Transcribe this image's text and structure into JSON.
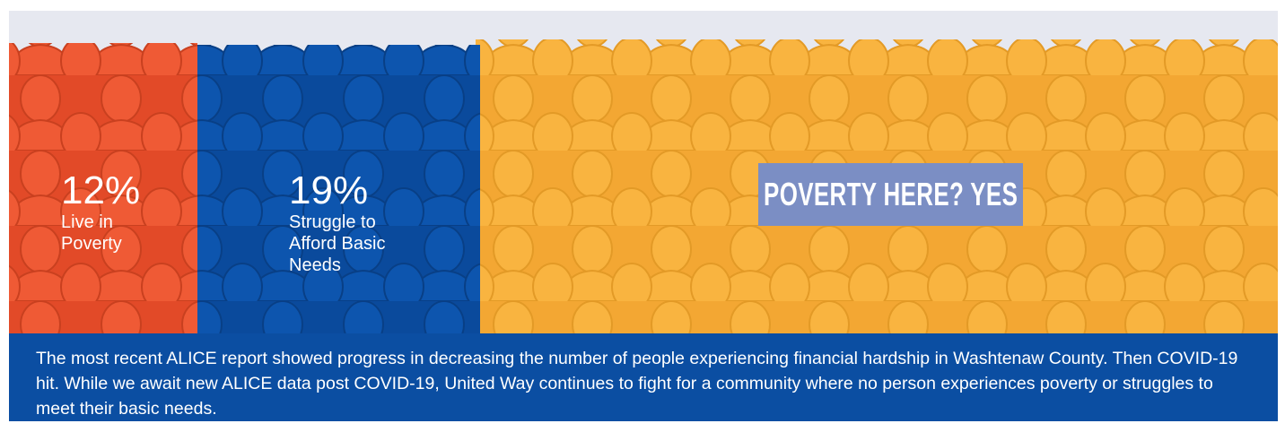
{
  "stats": [
    {
      "value": "12%",
      "label": "Live in Poverty"
    },
    {
      "value": "19%",
      "label": "Struggle to Afford Basic Needs"
    }
  ],
  "badge": "POVERTY HERE? YES",
  "description": "The most recent ALICE report showed progress in decreasing the number of people experiencing financial hardship in Washtenaw County. Then COVID-19 hit. While we await new ALICE data post COVID-19, United Way continues to fight for a community where no person experiences poverty or struggles to meet their basic needs."
}
